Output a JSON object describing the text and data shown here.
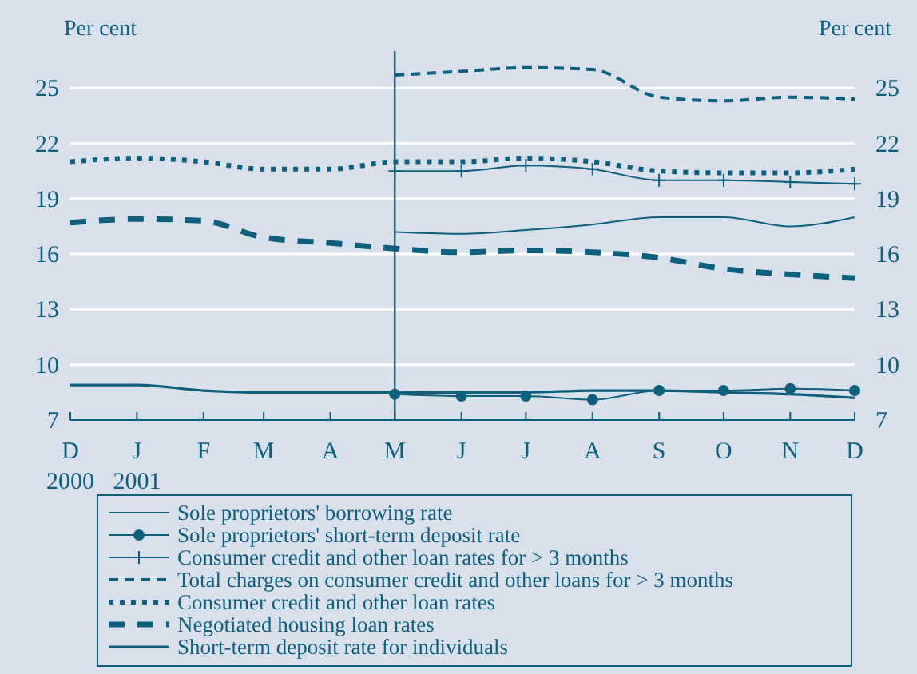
{
  "chart_data": {
    "type": "line",
    "ylabel": "Per cent",
    "y2label": "Per cent",
    "x": [
      "2000-12",
      "2001-01",
      "2001-02",
      "2001-03",
      "2001-04",
      "2001-05",
      "2001-06",
      "2001-07",
      "2001-08",
      "2001-09",
      "2001-10",
      "2001-11",
      "2001-12"
    ],
    "xlim": [
      "2000-12",
      "2001-12"
    ],
    "xticks": [
      {
        "value": "2000-12",
        "label": "D\n2000"
      },
      {
        "value": "2001-01",
        "label": "J\n2001"
      },
      {
        "value": "2001-02",
        "label": "F"
      },
      {
        "value": "2001-03",
        "label": "M"
      },
      {
        "value": "2001-04",
        "label": "A"
      },
      {
        "value": "2001-05",
        "label": "M"
      },
      {
        "value": "2001-06",
        "label": "J"
      },
      {
        "value": "2001-07",
        "label": "J"
      },
      {
        "value": "2001-08",
        "label": "A"
      },
      {
        "value": "2001-09",
        "label": "S"
      },
      {
        "value": "2001-10",
        "label": "O"
      },
      {
        "value": "2001-11",
        "label": "N"
      },
      {
        "value": "2001-12",
        "label": "D"
      }
    ],
    "ylim": [
      7,
      27
    ],
    "yticks": [
      7,
      10,
      13,
      16,
      19,
      22,
      25
    ],
    "y2lim": [
      7,
      27
    ],
    "y2ticks": [
      7,
      10,
      13,
      16,
      19,
      22,
      25
    ],
    "grid": "y",
    "legend": "bottom",
    "ref_lines": [
      {
        "axis": "x",
        "value": "2001-05",
        "color": "#0d5f7e",
        "line_style": "solid"
      }
    ],
    "series": [
      {
        "name": "Sole proprietors' borrowing rate",
        "color": "#0d5f7e",
        "marker": "none",
        "line_style": "solid",
        "values": [
          null,
          null,
          null,
          null,
          null,
          17.2,
          17.1,
          17.3,
          17.6,
          18.0,
          18.0,
          17.5,
          18.0
        ]
      },
      {
        "name": "Sole proprietors' short-term deposit rate",
        "color": "#0d5f7e",
        "marker": "circle",
        "line_style": "solid",
        "values": [
          null,
          null,
          null,
          null,
          null,
          8.4,
          8.3,
          8.3,
          8.1,
          8.6,
          8.6,
          8.7,
          8.6
        ]
      },
      {
        "name": "Consumer credit and other loan rates for > 3 months",
        "color": "#0d5f7e",
        "marker": "cross",
        "line_style": "solid",
        "values": [
          null,
          null,
          null,
          null,
          null,
          20.5,
          20.5,
          20.8,
          20.6,
          20.0,
          20.0,
          19.9,
          19.8
        ]
      },
      {
        "name": "Total charges on consumer credit and other loans for > 3 months",
        "color": "#0d5f7e",
        "marker": "none",
        "line_style": "dashed",
        "values": [
          null,
          null,
          null,
          null,
          null,
          25.7,
          25.9,
          26.1,
          26.0,
          24.5,
          24.3,
          24.5,
          24.4
        ]
      },
      {
        "name": "Consumer credit and other loan rates",
        "color": "#0d5f7e",
        "marker": "none",
        "line_style": "dotted",
        "values": [
          21.0,
          21.2,
          21.0,
          20.6,
          20.6,
          21.0,
          21.0,
          21.2,
          21.0,
          20.5,
          20.4,
          20.4,
          20.6
        ]
      },
      {
        "name": "Negotiated housing loan rates",
        "color": "#0d5f7e",
        "marker": "none",
        "line_style": "dashed",
        "values": [
          17.7,
          17.9,
          17.8,
          16.9,
          16.6,
          16.3,
          16.1,
          16.2,
          16.1,
          15.8,
          15.2,
          14.9,
          14.7
        ]
      },
      {
        "name": "Short-term deposit rate for individuals",
        "color": "#0d5f7e",
        "marker": "none",
        "line_style": "solid",
        "values": [
          8.9,
          8.9,
          8.6,
          8.5,
          8.5,
          8.5,
          8.5,
          8.5,
          8.6,
          8.6,
          8.5,
          8.4,
          8.2
        ]
      }
    ]
  }
}
